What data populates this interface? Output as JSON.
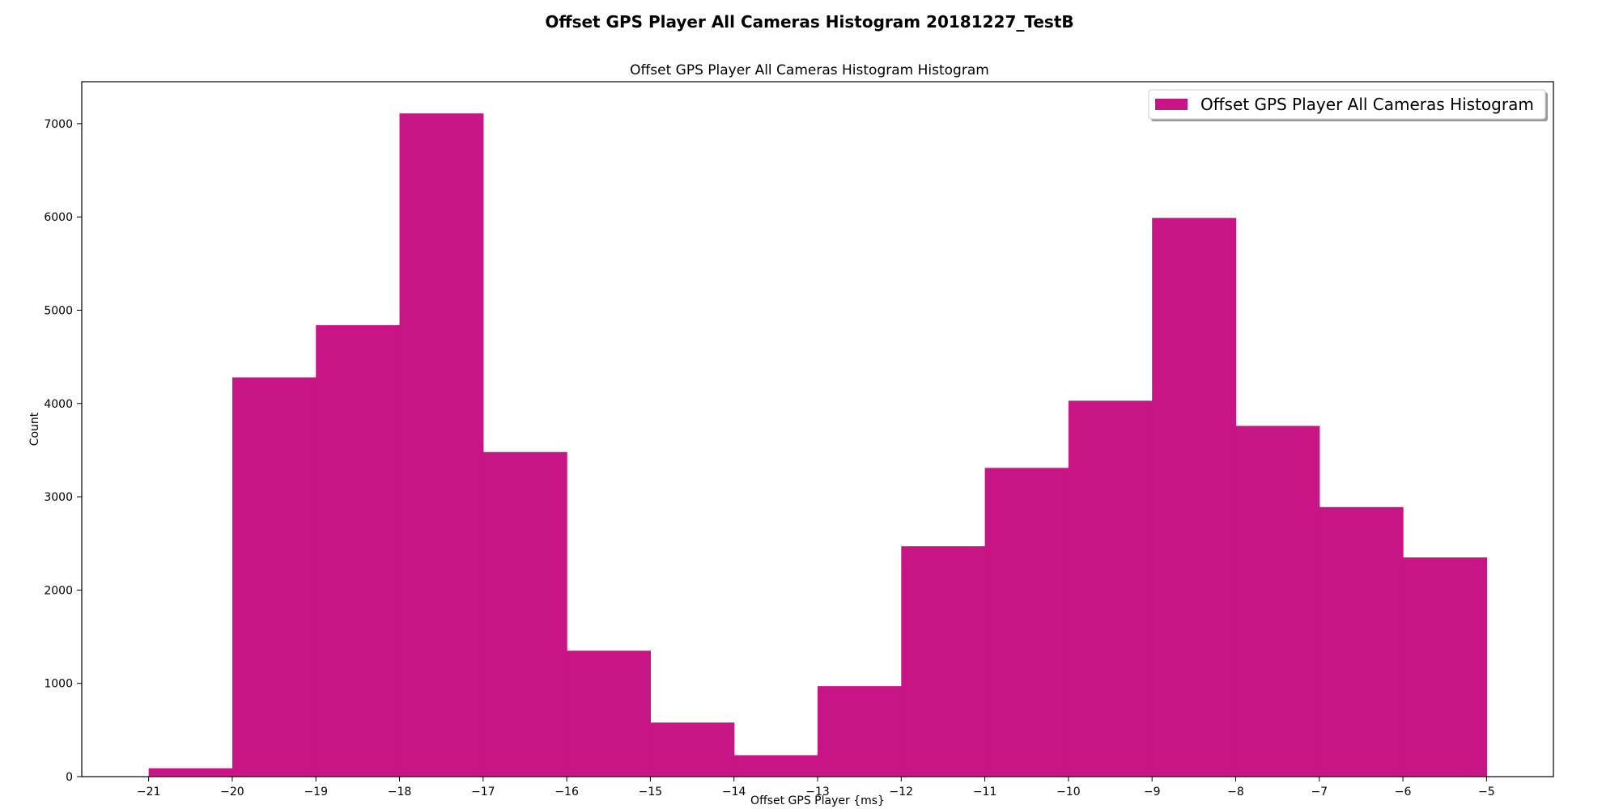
{
  "figure_title": "Offset GPS Player All Cameras Histogram 20181227_TestB",
  "colors": {
    "bar": "#c71585",
    "axis": "#000000",
    "background": "#ffffff"
  },
  "chart_data": {
    "type": "bar",
    "title": "Offset GPS Player All Cameras Histogram Histogram",
    "xlabel": "Offset GPS Player {ms}",
    "ylabel": "Count",
    "legend": {
      "entries": [
        "Offset GPS Player All Cameras Histogram"
      ],
      "placement": "top-right"
    },
    "grid": false,
    "xlim": [
      -21.8,
      -4.2
    ],
    "ylim": [
      0,
      7450
    ],
    "x_ticks": [
      -21,
      -20,
      -19,
      -18,
      -17,
      -16,
      -15,
      -14,
      -13,
      -12,
      -11,
      -10,
      -9,
      -8,
      -7,
      -6,
      -5
    ],
    "x_tick_labels": [
      "−21",
      "−20",
      "−19",
      "−18",
      "−17",
      "−16",
      "−15",
      "−14",
      "−13",
      "−12",
      "−11",
      "−10",
      "−9",
      "−8",
      "−7",
      "−6",
      "−5"
    ],
    "y_ticks": [
      0,
      1000,
      2000,
      3000,
      4000,
      5000,
      6000,
      7000
    ],
    "y_tick_labels": [
      "0",
      "1000",
      "2000",
      "3000",
      "4000",
      "5000",
      "6000",
      "7000"
    ],
    "bin_edges": [
      -21,
      -20,
      -19,
      -18,
      -17,
      -16,
      -15,
      -14,
      -13,
      -12,
      -11,
      -10,
      -9,
      -8,
      -7,
      -6,
      -5
    ],
    "values": [
      90,
      4280,
      4840,
      7110,
      3480,
      1350,
      580,
      230,
      970,
      2470,
      3310,
      4030,
      5990,
      3760,
      2890,
      2350
    ]
  }
}
